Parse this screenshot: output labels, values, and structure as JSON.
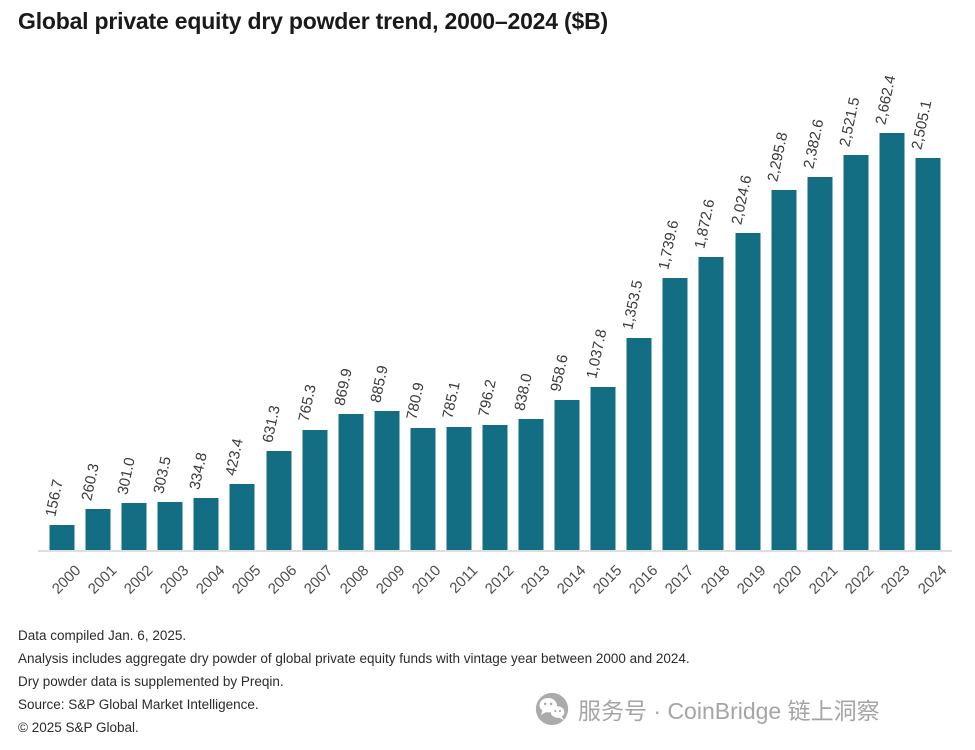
{
  "title": "Global private equity dry powder trend, 2000–2024 ($B)",
  "chart_data": {
    "type": "bar",
    "title": "Global private equity dry powder trend, 2000–2024 ($B)",
    "categories": [
      "2000",
      "2001",
      "2002",
      "2003",
      "2004",
      "2005",
      "2006",
      "2007",
      "2008",
      "2009",
      "2010",
      "2011",
      "2012",
      "2013",
      "2014",
      "2015",
      "2016",
      "2017",
      "2018",
      "2019",
      "2020",
      "2021",
      "2022",
      "2023",
      "2024"
    ],
    "values": [
      156.7,
      260.3,
      301.0,
      303.5,
      334.8,
      423.4,
      631.3,
      765.3,
      869.9,
      885.9,
      780.9,
      785.1,
      796.2,
      838.0,
      958.6,
      1037.8,
      1353.5,
      1739.6,
      1872.6,
      2024.6,
      2295.8,
      2382.6,
      2521.5,
      2662.4,
      2505.1
    ],
    "labels": [
      "156.7",
      "260.3",
      "301.0",
      "303.5",
      "334.8",
      "423.4",
      "631.3",
      "765.3",
      "869.9",
      "885.9",
      "780.9",
      "785.1",
      "796.2",
      "838.0",
      "958.6",
      "1,037.8",
      "1,353.5",
      "1,739.6",
      "1,872.6",
      "2,024.6",
      "2,295.8",
      "2,382.6",
      "2,521.5",
      "2,662.4",
      "2,505.1"
    ],
    "xlabel": "",
    "ylabel": "",
    "ylim": [
      0,
      2800
    ],
    "grid": false,
    "legend": "none"
  },
  "footer": {
    "lines": [
      "Data compiled Jan. 6, 2025.",
      "Analysis includes aggregate dry powder of global private equity funds with vintage year between 2000 and 2024.",
      "Dry powder data is supplemented by Preqin.",
      "Source: S&P Global Market Intelligence.",
      "© 2025 S&P Global."
    ]
  },
  "watermark": {
    "icon": "wechat-icon",
    "text": "服务号 · CoinBridge 链上洞察"
  },
  "colors": {
    "bar": "#136E84",
    "axis_line": "#DEDEDE",
    "title_text": "#1A1A1A",
    "value_label": "#3A3A3A",
    "year_label": "#4D4D4D",
    "footer_text": "#2B2B2B",
    "watermark": "#A5A5A5"
  }
}
